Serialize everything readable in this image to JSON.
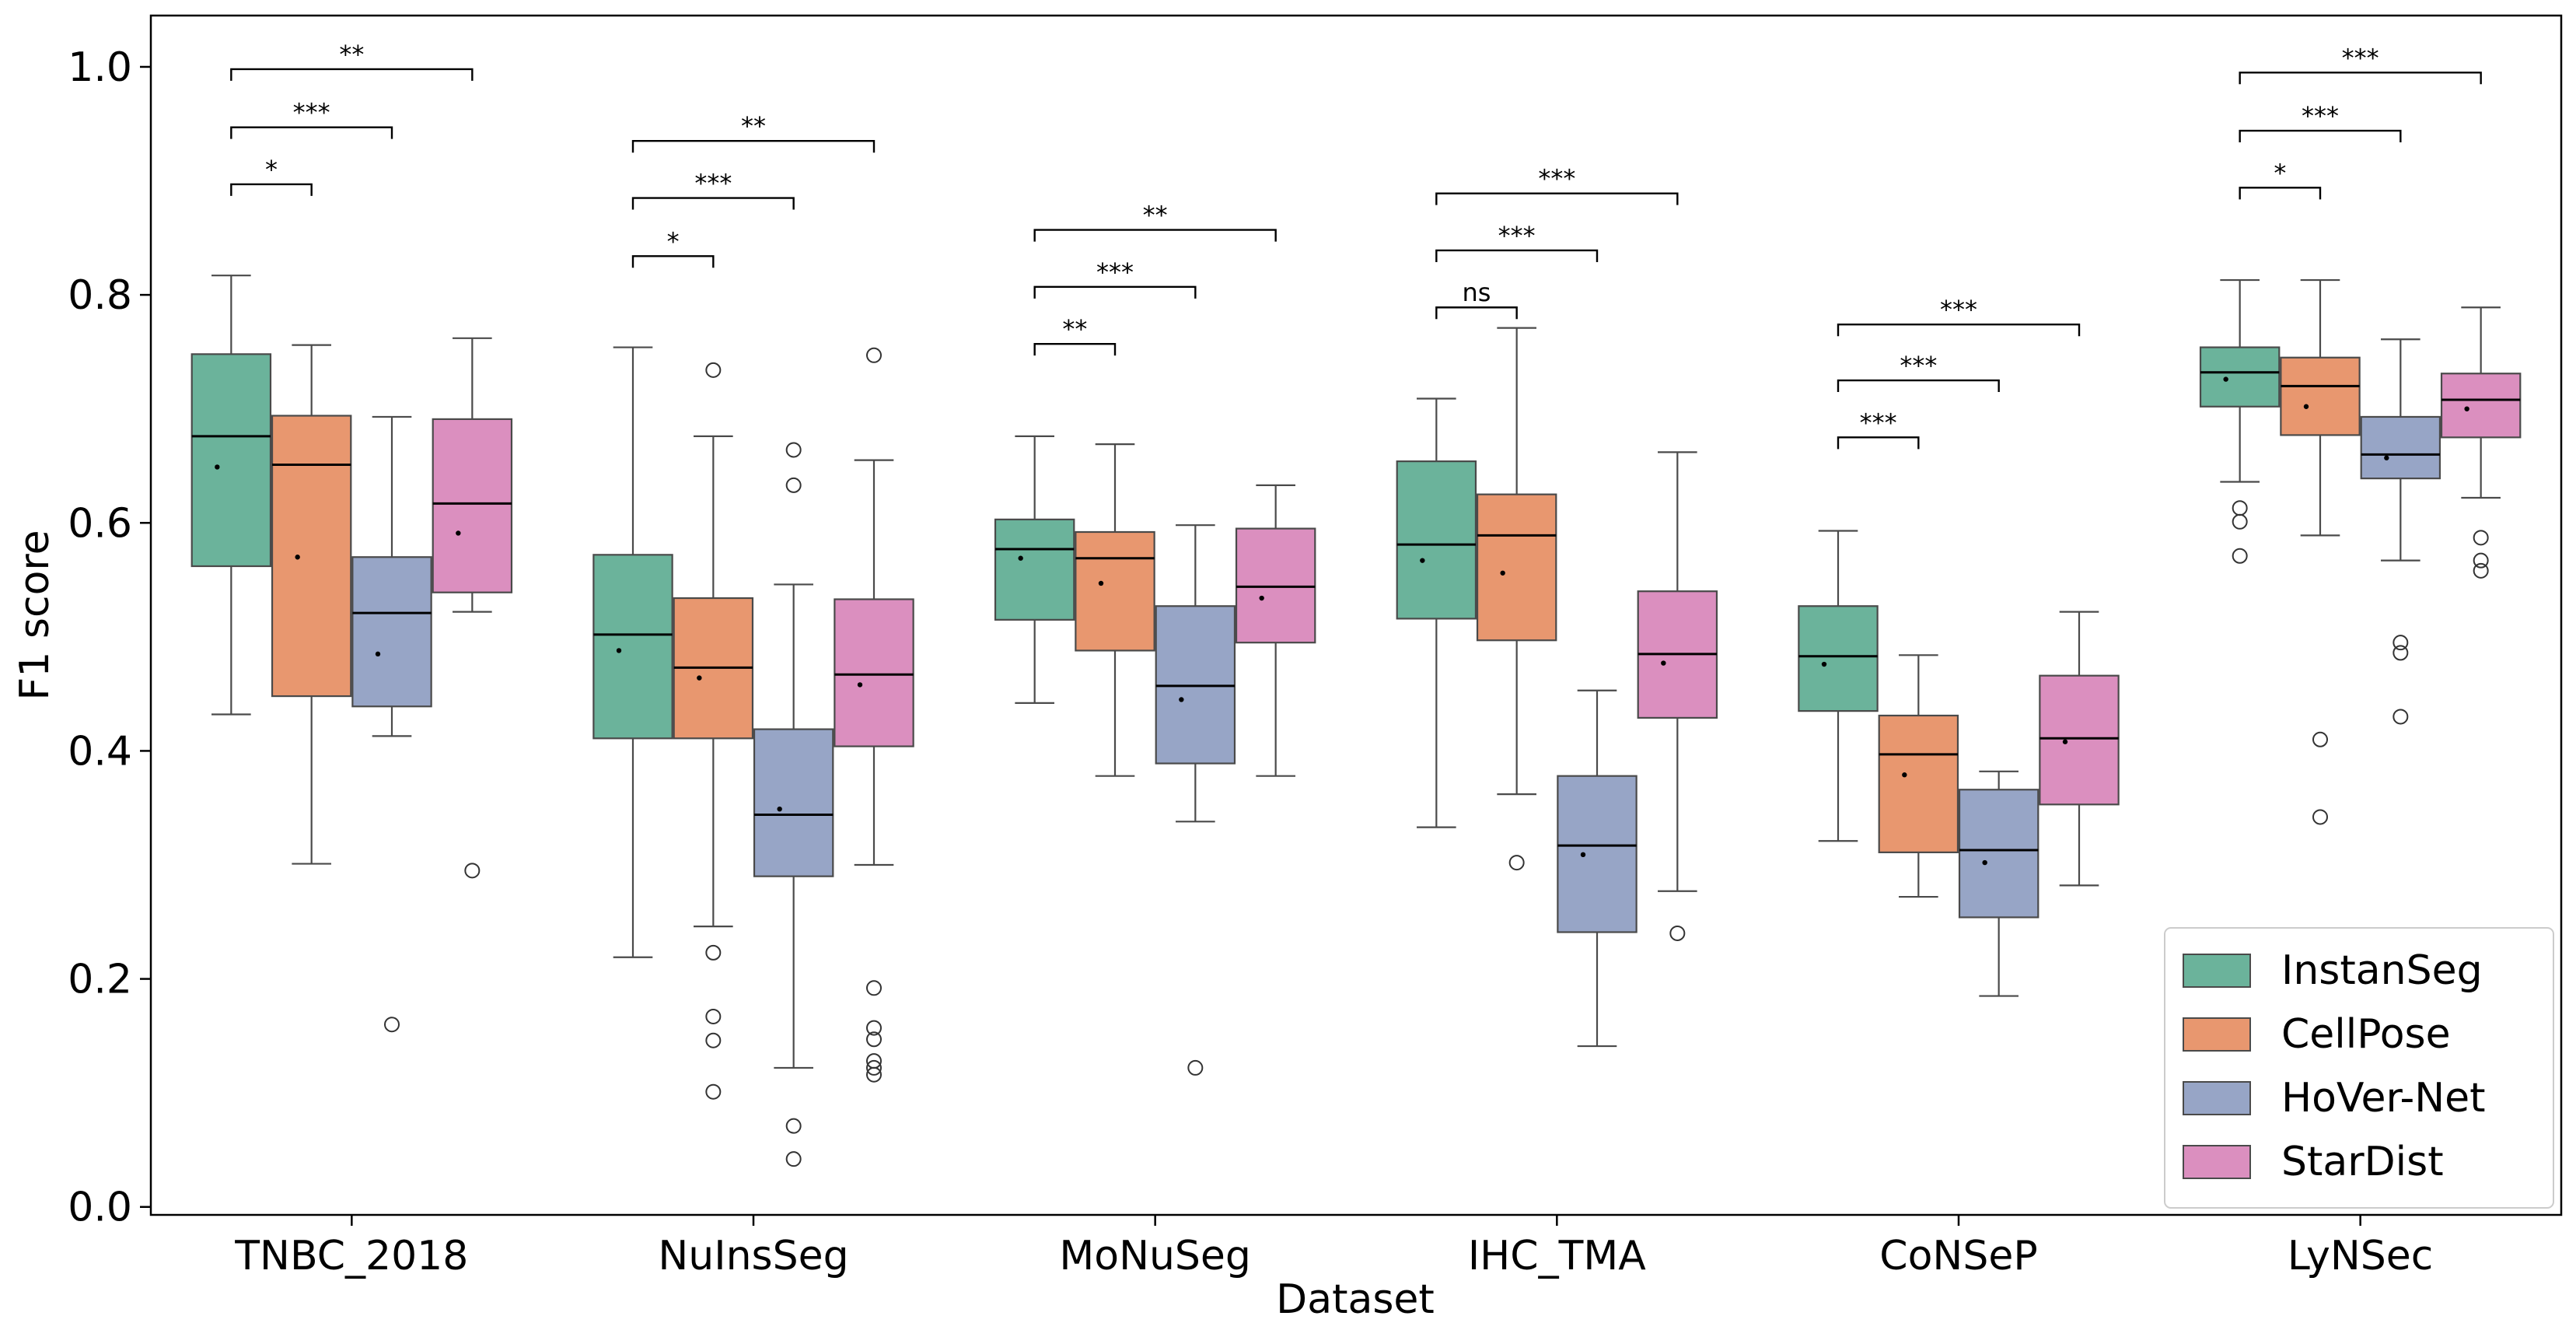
{
  "chart_data": {
    "type": "box",
    "xlabel": "Dataset",
    "ylabel": "F1 score",
    "ylim": [
      -0.007,
      1.045
    ],
    "yticks": [
      0.0,
      0.2,
      0.4,
      0.6,
      0.8,
      1.0
    ],
    "ytick_labels": [
      "0.0",
      "0.2",
      "0.4",
      "0.6",
      "0.8",
      "1.0"
    ],
    "categories": [
      "TNBC_2018",
      "NuInsSeg",
      "MoNuSeg",
      "IHC_TMA",
      "CoNSeP",
      "LyNSec"
    ],
    "legend_position": "lower-right",
    "series": [
      {
        "name": "InstanSeg",
        "color": "#6bb39b",
        "boxes": [
          {
            "whislo": 0.432,
            "q1": 0.562,
            "med": 0.676,
            "q3": 0.748,
            "whishi": 0.817,
            "mean": 0.649,
            "fliers": []
          },
          {
            "whislo": 0.219,
            "q1": 0.411,
            "med": 0.502,
            "q3": 0.572,
            "whishi": 0.754,
            "mean": 0.488,
            "fliers": []
          },
          {
            "whislo": 0.442,
            "q1": 0.515,
            "med": 0.577,
            "q3": 0.603,
            "whishi": 0.676,
            "mean": 0.569,
            "fliers": []
          },
          {
            "whislo": 0.333,
            "q1": 0.516,
            "med": 0.581,
            "q3": 0.654,
            "whishi": 0.709,
            "mean": 0.567,
            "fliers": []
          },
          {
            "whislo": 0.321,
            "q1": 0.435,
            "med": 0.483,
            "q3": 0.527,
            "whishi": 0.593,
            "mean": 0.476,
            "fliers": []
          },
          {
            "whislo": 0.636,
            "q1": 0.702,
            "med": 0.732,
            "q3": 0.754,
            "whishi": 0.813,
            "mean": 0.726,
            "fliers": [
              0.613,
              0.601,
              0.571
            ]
          }
        ]
      },
      {
        "name": "CellPose",
        "color": "#e8976f",
        "boxes": [
          {
            "whislo": 0.301,
            "q1": 0.448,
            "med": 0.651,
            "q3": 0.694,
            "whishi": 0.756,
            "mean": 0.57,
            "fliers": []
          },
          {
            "whislo": 0.246,
            "q1": 0.411,
            "med": 0.473,
            "q3": 0.534,
            "whishi": 0.676,
            "mean": 0.464,
            "fliers": [
              0.734,
              0.223,
              0.167,
              0.146,
              0.101
            ]
          },
          {
            "whislo": 0.378,
            "q1": 0.488,
            "med": 0.569,
            "q3": 0.592,
            "whishi": 0.669,
            "mean": 0.547,
            "fliers": []
          },
          {
            "whislo": 0.362,
            "q1": 0.497,
            "med": 0.589,
            "q3": 0.625,
            "whishi": 0.771,
            "mean": 0.556,
            "fliers": [
              0.302
            ]
          },
          {
            "whislo": 0.272,
            "q1": 0.311,
            "med": 0.397,
            "q3": 0.431,
            "whishi": 0.484,
            "mean": 0.379,
            "fliers": []
          },
          {
            "whislo": 0.589,
            "q1": 0.677,
            "med": 0.72,
            "q3": 0.745,
            "whishi": 0.813,
            "mean": 0.702,
            "fliers": [
              0.41,
              0.342
            ]
          }
        ]
      },
      {
        "name": "HoVer-Net",
        "color": "#97a5c6",
        "boxes": [
          {
            "whislo": 0.413,
            "q1": 0.439,
            "med": 0.521,
            "q3": 0.57,
            "whishi": 0.693,
            "mean": 0.485,
            "fliers": [
              0.16
            ]
          },
          {
            "whislo": 0.122,
            "q1": 0.29,
            "med": 0.344,
            "q3": 0.419,
            "whishi": 0.546,
            "mean": 0.349,
            "fliers": [
              0.664,
              0.633,
              0.071,
              0.042
            ]
          },
          {
            "whislo": 0.338,
            "q1": 0.389,
            "med": 0.457,
            "q3": 0.527,
            "whishi": 0.598,
            "mean": 0.445,
            "fliers": [
              0.122
            ]
          },
          {
            "whislo": 0.141,
            "q1": 0.241,
            "med": 0.317,
            "q3": 0.378,
            "whishi": 0.453,
            "mean": 0.309,
            "fliers": []
          },
          {
            "whislo": 0.185,
            "q1": 0.254,
            "med": 0.313,
            "q3": 0.366,
            "whishi": 0.382,
            "mean": 0.302,
            "fliers": []
          },
          {
            "whislo": 0.567,
            "q1": 0.639,
            "med": 0.66,
            "q3": 0.693,
            "whishi": 0.761,
            "mean": 0.657,
            "fliers": [
              0.495,
              0.486,
              0.43
            ]
          }
        ]
      },
      {
        "name": "StarDist",
        "color": "#db8fbf",
        "boxes": [
          {
            "whislo": 0.522,
            "q1": 0.539,
            "med": 0.617,
            "q3": 0.691,
            "whishi": 0.762,
            "mean": 0.591,
            "fliers": [
              0.295
            ]
          },
          {
            "whislo": 0.3,
            "q1": 0.404,
            "med": 0.467,
            "q3": 0.533,
            "whishi": 0.655,
            "mean": 0.458,
            "fliers": [
              0.747,
              0.192,
              0.157,
              0.147,
              0.128,
              0.122,
              0.116
            ]
          },
          {
            "whislo": 0.378,
            "q1": 0.495,
            "med": 0.544,
            "q3": 0.595,
            "whishi": 0.633,
            "mean": 0.534,
            "fliers": []
          },
          {
            "whislo": 0.277,
            "q1": 0.429,
            "med": 0.485,
            "q3": 0.54,
            "whishi": 0.662,
            "mean": 0.477,
            "fliers": [
              0.24
            ]
          },
          {
            "whislo": 0.282,
            "q1": 0.353,
            "med": 0.411,
            "q3": 0.466,
            "whishi": 0.522,
            "mean": 0.408,
            "fliers": []
          },
          {
            "whislo": 0.622,
            "q1": 0.675,
            "med": 0.708,
            "q3": 0.731,
            "whishi": 0.789,
            "mean": 0.7,
            "fliers": [
              0.587,
              0.567,
              0.558
            ]
          }
        ]
      }
    ],
    "significance": [
      {
        "category": 0,
        "series_a": 0,
        "series_b": 1,
        "y": 0.897,
        "label": "*"
      },
      {
        "category": 0,
        "series_a": 0,
        "series_b": 2,
        "y": 0.947,
        "label": "***"
      },
      {
        "category": 0,
        "series_a": 0,
        "series_b": 3,
        "y": 0.998,
        "label": "**"
      },
      {
        "category": 1,
        "series_a": 0,
        "series_b": 1,
        "y": 0.834,
        "label": "*"
      },
      {
        "category": 1,
        "series_a": 0,
        "series_b": 2,
        "y": 0.885,
        "label": "***"
      },
      {
        "category": 1,
        "series_a": 0,
        "series_b": 3,
        "y": 0.935,
        "label": "**"
      },
      {
        "category": 2,
        "series_a": 0,
        "series_b": 1,
        "y": 0.757,
        "label": "**"
      },
      {
        "category": 2,
        "series_a": 0,
        "series_b": 2,
        "y": 0.807,
        "label": "***"
      },
      {
        "category": 2,
        "series_a": 0,
        "series_b": 3,
        "y": 0.857,
        "label": "**"
      },
      {
        "category": 2,
        "series_a": 0,
        "series_b": 3,
        "y": 0.857,
        "label": "**",
        "duplicate": true
      },
      {
        "category": 3,
        "series_a": 0,
        "series_b": 1,
        "y": 0.789,
        "label": "ns"
      },
      {
        "category": 3,
        "series_a": 0,
        "series_b": 2,
        "y": 0.839,
        "label": "***"
      },
      {
        "category": 3,
        "series_a": 0,
        "series_b": 3,
        "y": 0.889,
        "label": "***"
      },
      {
        "category": 4,
        "series_a": 0,
        "series_b": 1,
        "y": 0.675,
        "label": "***"
      },
      {
        "category": 4,
        "series_a": 0,
        "series_b": 2,
        "y": 0.725,
        "label": "***"
      },
      {
        "category": 4,
        "series_a": 0,
        "series_b": 3,
        "y": 0.774,
        "label": "***"
      },
      {
        "category": 5,
        "series_a": 0,
        "series_b": 1,
        "y": 0.894,
        "label": "*"
      },
      {
        "category": 5,
        "series_a": 0,
        "series_b": 2,
        "y": 0.944,
        "label": "***"
      },
      {
        "category": 5,
        "series_a": 0,
        "series_b": 3,
        "y": 0.995,
        "label": "***"
      }
    ]
  }
}
